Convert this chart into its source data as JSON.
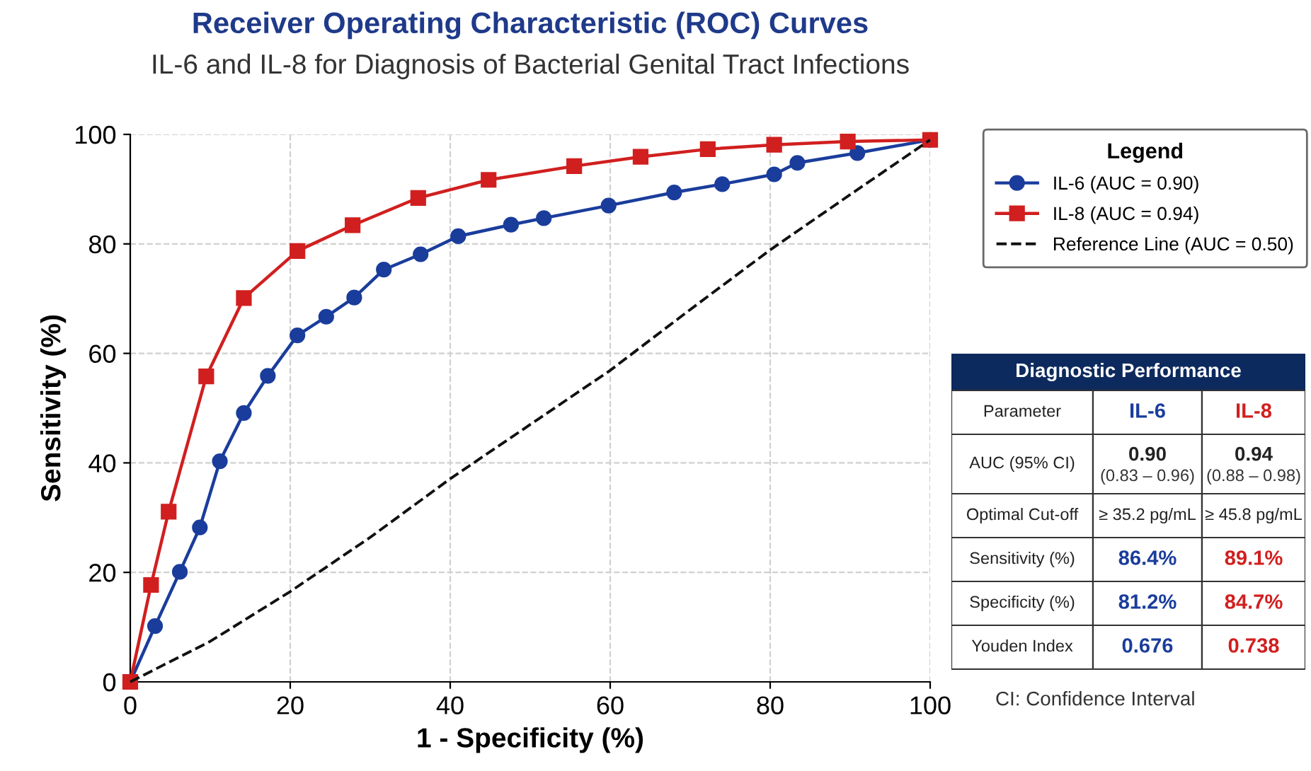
{
  "chart_data": [
    {
      "type": "line",
      "title": "Receiver Operating Characteristic (ROC) Curves",
      "subtitle": "IL-6 and IL-8 for Diagnosis of Bacterial Genital Tract Infections",
      "xlabel": "1 - Specificity (%)",
      "ylabel": "Sensitivity (%)",
      "legend_title": "Legend",
      "legend": "top right",
      "grid": true,
      "xlim": [
        0,
        100
      ],
      "ylim": [
        0,
        100
      ],
      "xticks": [
        0,
        20,
        40,
        60,
        80,
        100
      ],
      "yticks": [
        0,
        20,
        40,
        60,
        80,
        100
      ],
      "annotations": [
        "CI: Confidence Interval"
      ],
      "series": [
        {
          "name": "IL-6 (AUC = 0.90)",
          "color": "#1a3d9c",
          "marker": "circle",
          "line_style": "solid",
          "x": [
            0,
            3.1,
            6.2,
            8.7,
            11.2,
            14.2,
            17.2,
            20.9,
            24.5,
            28.0,
            31.7,
            36.3,
            41.0,
            47.6,
            51.7,
            59.8,
            68.0,
            74.0,
            80.5,
            83.4,
            90.9,
            100
          ],
          "values": [
            0,
            10.2,
            20.1,
            28.2,
            40.3,
            49.1,
            55.9,
            63.3,
            66.7,
            70.2,
            75.3,
            78.1,
            81.4,
            83.5,
            84.7,
            87.0,
            89.4,
            90.9,
            92.7,
            94.8,
            96.6,
            99
          ]
        },
        {
          "name": "IL-8 (AUC = 0.94)",
          "color": "#d11f1f",
          "marker": "square",
          "line_style": "solid",
          "x": [
            0,
            2.6,
            4.8,
            9.5,
            14.2,
            20.9,
            27.8,
            36.0,
            44.8,
            55.5,
            63.8,
            72.2,
            80.5,
            89.7,
            100
          ],
          "values": [
            0,
            17.7,
            31.1,
            55.8,
            70.1,
            78.7,
            83.4,
            88.4,
            91.7,
            94.2,
            95.9,
            97.3,
            98.1,
            98.7,
            99
          ]
        },
        {
          "name": "Reference Line (AUC = 0.50)",
          "color": "#111111",
          "marker": "none",
          "line_style": "dashed",
          "x": [
            0,
            10,
            20,
            30,
            40,
            50,
            60,
            70,
            80,
            90,
            100
          ],
          "values": [
            0,
            7.4,
            16.5,
            26.4,
            37.1,
            47,
            56.9,
            68,
            78.9,
            89,
            99
          ]
        }
      ]
    },
    {
      "type": "other",
      "title": "Diagnostic Performance",
      "colors": [
        "#222222",
        "#1a3d9c",
        "#d11f1f"
      ],
      "annotations": [
        "Parameter",
        "IL-6",
        "IL-8",
        "AUC (95% CI)",
        "0.90\n(0.83 – 0.96)",
        "0.94\n(0.88 – 0.98)",
        "Optimal Cut-off",
        "≥ 35.2 pg/mL",
        "≥ 45.8 pg/mL",
        "Sensitivity (%)",
        "86.4%",
        "89.1%",
        "Specificity (%)",
        "81.2%",
        "84.7%",
        "Youden Index",
        "0.676",
        "0.738"
      ]
    }
  ]
}
